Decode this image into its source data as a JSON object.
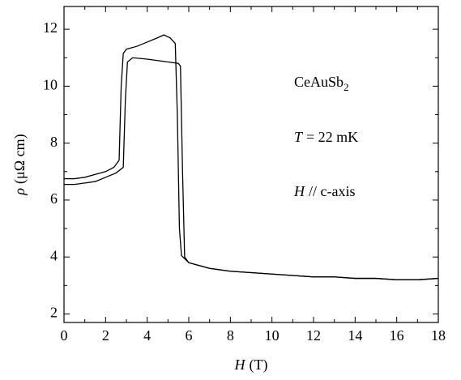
{
  "chart_data": {
    "type": "line",
    "xlabel": {
      "symbol": "H",
      "unit": "(T)"
    },
    "ylabel": {
      "symbol": "ρ",
      "unit": "(μΩ cm)"
    },
    "annotations": [
      {
        "text": "CeAuSb",
        "subscript": "2"
      },
      {
        "symbol": "T",
        "text": "= 22 mK"
      },
      {
        "symbol": "H",
        "text": "// c-axis"
      }
    ],
    "xlim": [
      0,
      18
    ],
    "xticks": [
      0,
      2,
      4,
      6,
      8,
      10,
      12,
      14,
      16,
      18
    ],
    "xminorticks": [
      1,
      3,
      5,
      7,
      9,
      11,
      13,
      15,
      17
    ],
    "ylim": [
      1.7,
      12.8
    ],
    "yticks": [
      2,
      4,
      6,
      8,
      10,
      12
    ],
    "yminorticks": [
      3,
      5,
      7,
      9,
      11
    ],
    "color": "#000000",
    "series": [
      {
        "x": [
          0,
          0.5,
          1,
          1.5,
          2,
          2.4,
          2.65,
          2.75,
          2.85,
          3,
          3.5,
          4,
          4.5,
          4.8,
          5.1,
          5.35,
          5.45,
          5.55,
          5.65,
          6,
          7,
          8,
          9,
          10,
          11,
          12,
          13,
          14,
          15,
          16,
          17,
          18
        ],
        "values": [
          6.75,
          6.75,
          6.8,
          6.9,
          7.0,
          7.15,
          7.4,
          10.0,
          11.15,
          11.3,
          11.4,
          11.55,
          11.7,
          11.8,
          11.7,
          11.5,
          9.0,
          5.0,
          4.05,
          3.8,
          3.6,
          3.5,
          3.45,
          3.4,
          3.35,
          3.3,
          3.3,
          3.25,
          3.25,
          3.2,
          3.2,
          3.25
        ]
      },
      {
        "x": [
          0,
          0.5,
          1,
          1.5,
          2,
          2.5,
          2.85,
          2.95,
          3.05,
          3.3,
          4,
          4.5,
          5,
          5.5,
          5.6,
          5.7,
          5.8,
          6,
          7,
          8,
          9,
          10,
          11,
          12,
          13,
          14,
          15,
          16,
          17,
          18
        ],
        "values": [
          6.55,
          6.55,
          6.6,
          6.65,
          6.8,
          6.95,
          7.15,
          9.5,
          10.85,
          11.0,
          10.95,
          10.9,
          10.85,
          10.8,
          10.7,
          7.0,
          4.0,
          3.8,
          3.6,
          3.5,
          3.45,
          3.4,
          3.35,
          3.3,
          3.3,
          3.25,
          3.25,
          3.2,
          3.2,
          3.25
        ]
      }
    ]
  }
}
